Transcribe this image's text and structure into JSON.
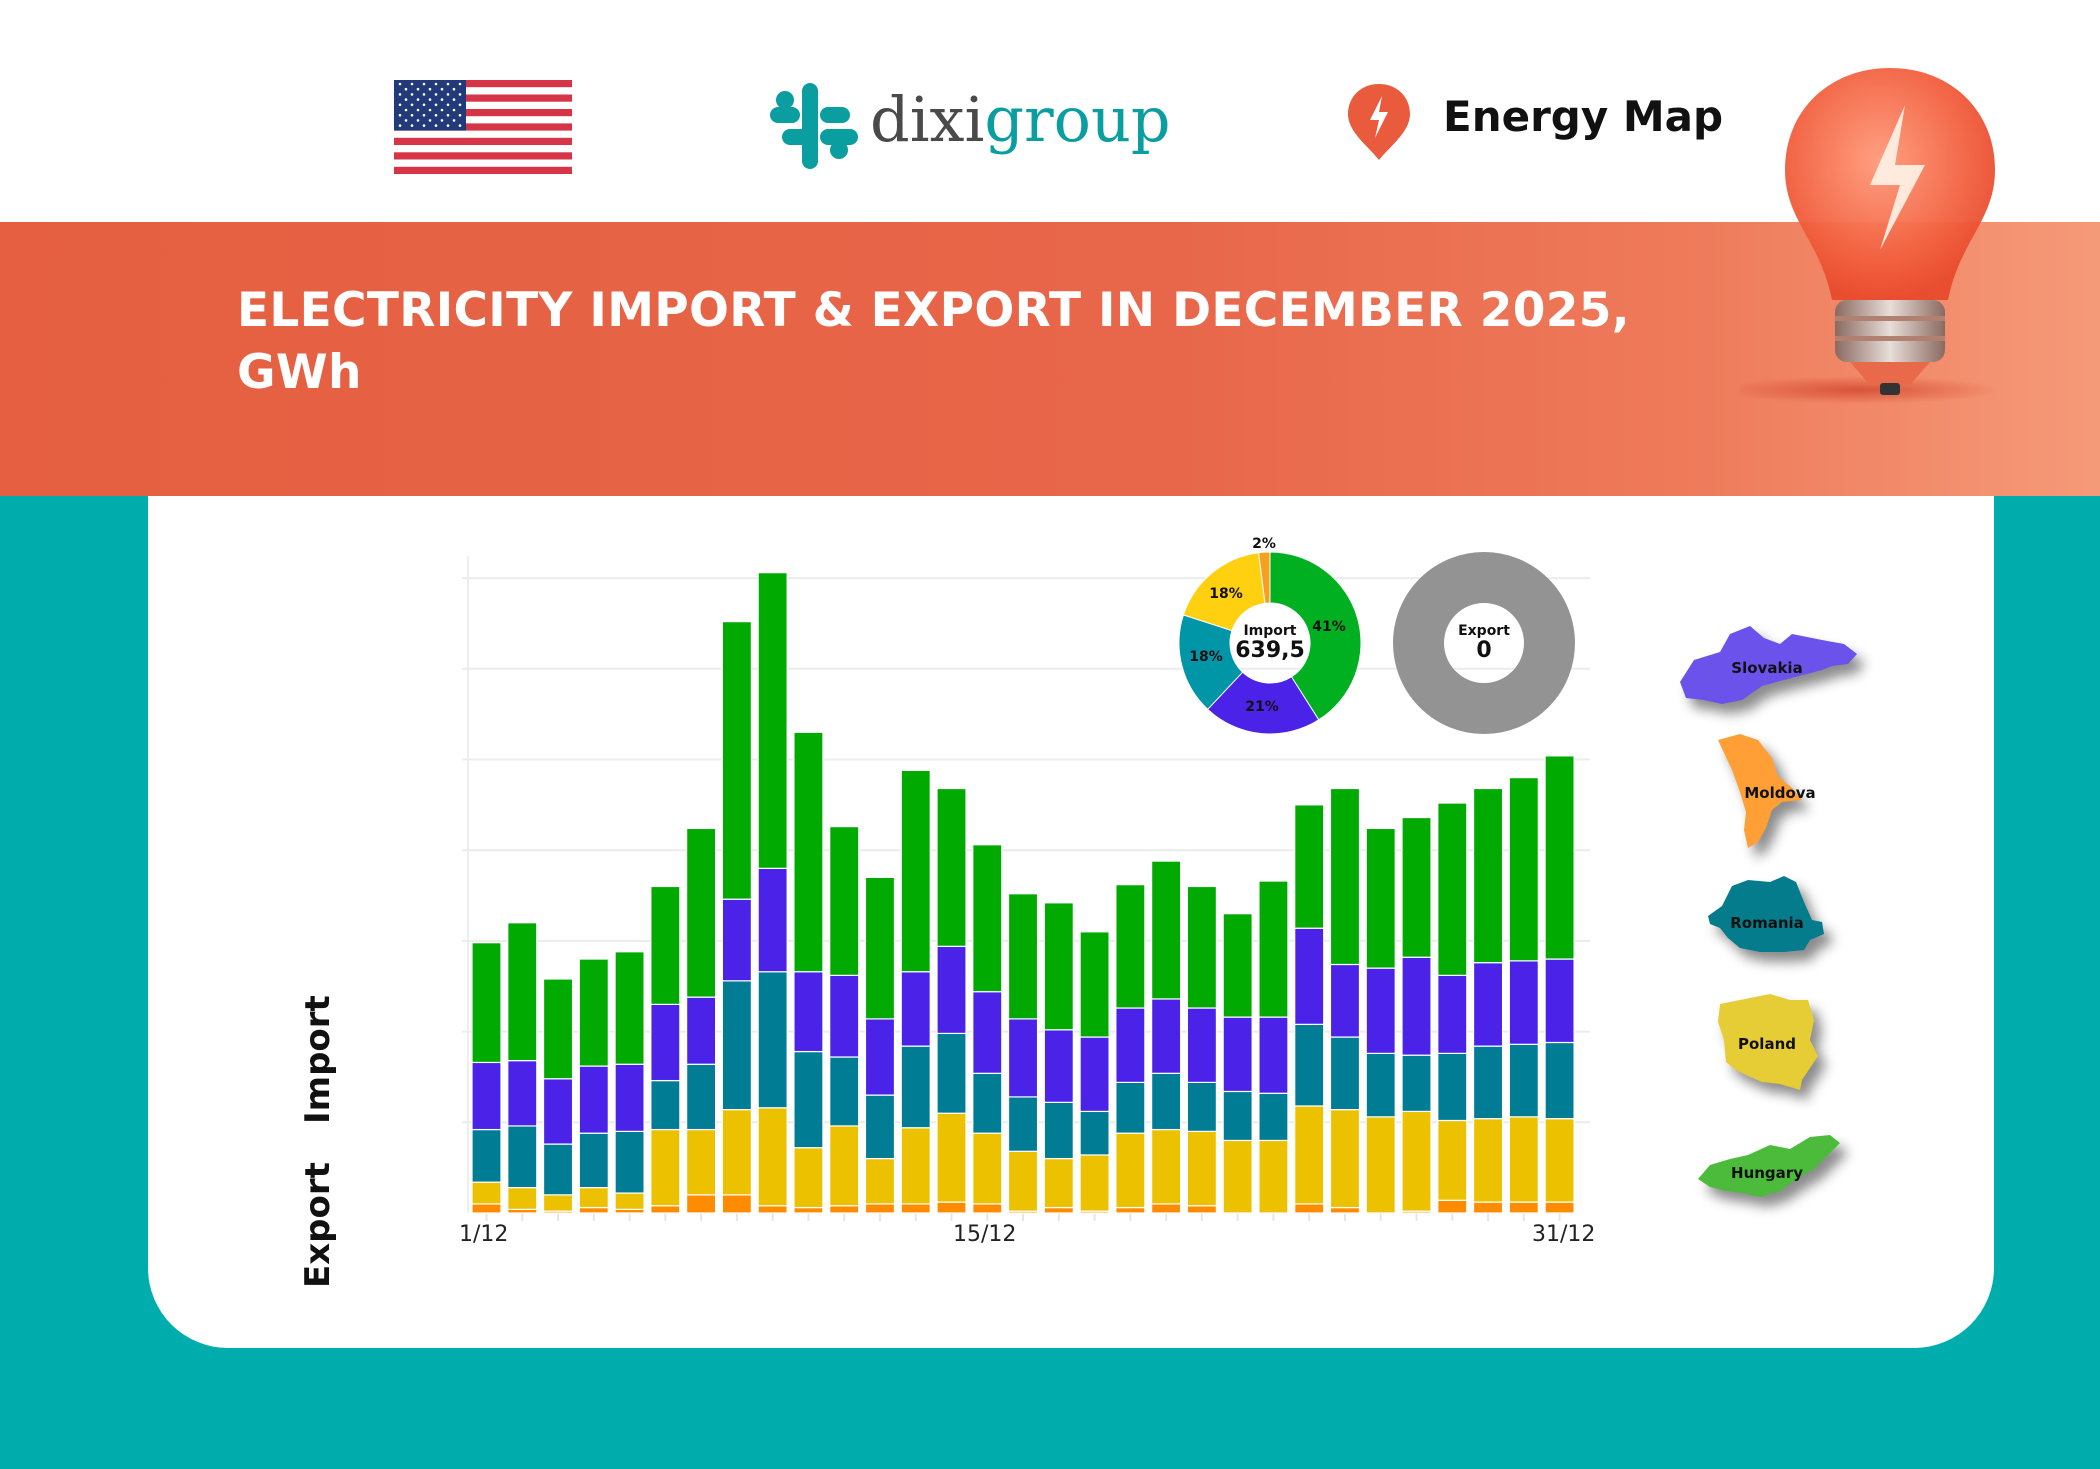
{
  "header": {
    "flag": "us-flag",
    "brand_logo_text": {
      "part1": "dixi",
      "part2": "group"
    },
    "energy_map_label": "Energy Map"
  },
  "banner": {
    "title_line1": "ELECTRICITY IMPORT & EXPORT IN DECEMBER 2025,",
    "title_line2": "GWh"
  },
  "axis_words": {
    "import": "Import",
    "export": "Export"
  },
  "colors": {
    "hungary": "#00aa00",
    "slovakia": "#4a22e8",
    "romania": "#007d94",
    "poland": "#ecc200",
    "moldova": "#ff8c00",
    "background_teal": "#00adad",
    "banner_orange": "#e8643f",
    "export_donut": "#939393"
  },
  "legend": [
    {
      "name": "Slovakia",
      "color": "#6a52ea"
    },
    {
      "name": "Moldova",
      "color": "#ff9f35"
    },
    {
      "name": "Romania",
      "color": "#047c8c"
    },
    {
      "name": "Poland",
      "color": "#e6cc35"
    },
    {
      "name": "Hungary",
      "color": "#4cbb3c"
    }
  ],
  "chart_data": [
    {
      "type": "bar",
      "stacked": true,
      "x": [
        1,
        2,
        3,
        4,
        5,
        6,
        7,
        8,
        9,
        10,
        11,
        12,
        13,
        14,
        15,
        16,
        17,
        18,
        19,
        20,
        21,
        22,
        23,
        24,
        25,
        26,
        27,
        28,
        29,
        30,
        31
      ],
      "x_tick_labels": [
        "1/12",
        "15/12",
        "31/12"
      ],
      "ylabel": "",
      "xlabel": "",
      "ylim": [
        0,
        36
      ],
      "y_gridlines": [
        5,
        10,
        15,
        20,
        25,
        30,
        35
      ],
      "y_tick_labels_shown": false,
      "grid": true,
      "unit": "GWh",
      "series": [
        {
          "name": "Moldova",
          "color": "#ff8c00",
          "values": [
            0.5,
            0.2,
            0.1,
            0.3,
            0.2,
            0.4,
            1.0,
            1.0,
            0.4,
            0.3,
            0.4,
            0.5,
            0.5,
            0.6,
            0.5,
            0.1,
            0.3,
            0.1,
            0.3,
            0.5,
            0.4,
            0.0,
            0.0,
            0.5,
            0.3,
            0.0,
            0.1,
            0.7,
            0.6,
            0.6,
            0.6
          ]
        },
        {
          "name": "Poland",
          "color": "#ecc200",
          "values": [
            1.2,
            1.2,
            0.9,
            1.1,
            0.9,
            4.2,
            3.6,
            4.7,
            5.4,
            3.3,
            4.4,
            2.5,
            4.2,
            4.9,
            3.9,
            3.3,
            2.7,
            3.1,
            4.1,
            4.1,
            4.1,
            4.0,
            4.0,
            5.4,
            5.4,
            5.3,
            5.5,
            4.4,
            4.6,
            4.7,
            4.6
          ]
        },
        {
          "name": "Romania",
          "color": "#007d94",
          "values": [
            2.9,
            3.4,
            2.8,
            3.0,
            3.4,
            2.7,
            3.6,
            7.1,
            7.5,
            5.3,
            3.8,
            3.5,
            4.5,
            4.4,
            3.3,
            3.0,
            3.1,
            2.4,
            2.8,
            3.1,
            2.7,
            2.7,
            2.6,
            4.5,
            4.0,
            3.5,
            3.1,
            3.7,
            4.0,
            4.0,
            4.2
          ]
        },
        {
          "name": "Slovakia",
          "color": "#4a22e8",
          "values": [
            3.7,
            3.6,
            3.6,
            3.7,
            3.7,
            4.2,
            3.7,
            4.5,
            5.7,
            4.4,
            4.5,
            4.2,
            4.1,
            4.8,
            4.5,
            4.3,
            4.0,
            4.1,
            4.1,
            4.1,
            4.1,
            4.1,
            4.2,
            5.3,
            4.0,
            4.7,
            5.4,
            4.3,
            4.6,
            4.6,
            4.6
          ]
        },
        {
          "name": "Hungary",
          "color": "#00aa00",
          "values": [
            6.6,
            7.6,
            5.5,
            5.9,
            6.2,
            6.5,
            9.3,
            15.3,
            16.3,
            13.2,
            8.2,
            7.8,
            11.1,
            8.7,
            8.1,
            6.9,
            7.0,
            5.8,
            6.8,
            7.6,
            6.7,
            5.7,
            7.5,
            6.8,
            9.7,
            7.7,
            7.7,
            9.5,
            9.6,
            10.1,
            11.2
          ]
        }
      ]
    },
    {
      "type": "pie",
      "donut": true,
      "center_label": "Import",
      "center_value": "639,5",
      "slices": [
        {
          "name": "Hungary",
          "value": 41,
          "label": "41%",
          "color": "#00b020"
        },
        {
          "name": "Slovakia",
          "value": 21,
          "label": "21%",
          "color": "#4b22e8"
        },
        {
          "name": "Romania",
          "value": 18,
          "label": "18%",
          "color": "#0096a8"
        },
        {
          "name": "Poland",
          "value": 18,
          "label": "18%",
          "color": "#ffd010"
        },
        {
          "name": "Moldova",
          "value": 2,
          "label": "2%",
          "color": "#f5a020"
        }
      ]
    },
    {
      "type": "pie",
      "donut": true,
      "center_label": "Export",
      "center_value": "0",
      "slices": [
        {
          "name": "Export",
          "value": 100,
          "color": "#939393"
        }
      ]
    }
  ]
}
